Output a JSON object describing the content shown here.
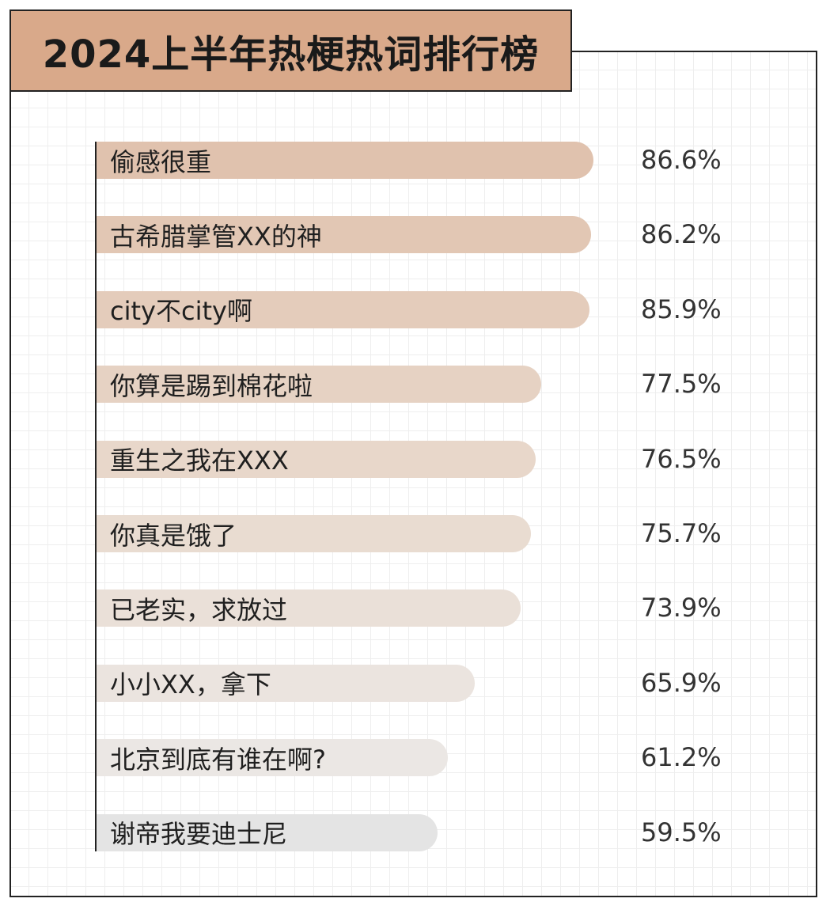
{
  "title": "2024上半年热梗热词排行榜",
  "chart_data": {
    "type": "bar",
    "orientation": "horizontal",
    "title": "2024上半年热梗热词排行榜",
    "categories": [
      "偷感很重",
      "古希腊掌管XX的神",
      "city不city啊",
      "你算是踢到棉花啦",
      "重生之我在XXX",
      "你真是饿了",
      "已老实，求放过",
      "小小XX，拿下",
      "北京到底有谁在啊?",
      "谢帝我要迪士尼"
    ],
    "values": [
      86.6,
      86.2,
      85.9,
      77.5,
      76.5,
      75.7,
      73.9,
      65.9,
      61.2,
      59.5
    ],
    "value_labels": [
      "86.6%",
      "86.2%",
      "85.9%",
      "77.5%",
      "76.5%",
      "75.7%",
      "73.9%",
      "65.9%",
      "61.2%",
      "59.5%"
    ],
    "bar_colors": [
      "#e0c2ae",
      "#e2c7b4",
      "#e4ccbb",
      "#e6d2c3",
      "#e8d7ca",
      "#e9dcd1",
      "#eae0d8",
      "#ebe4df",
      "#ebe7e4",
      "#e4e4e4"
    ],
    "grid": true,
    "legend": "none"
  }
}
